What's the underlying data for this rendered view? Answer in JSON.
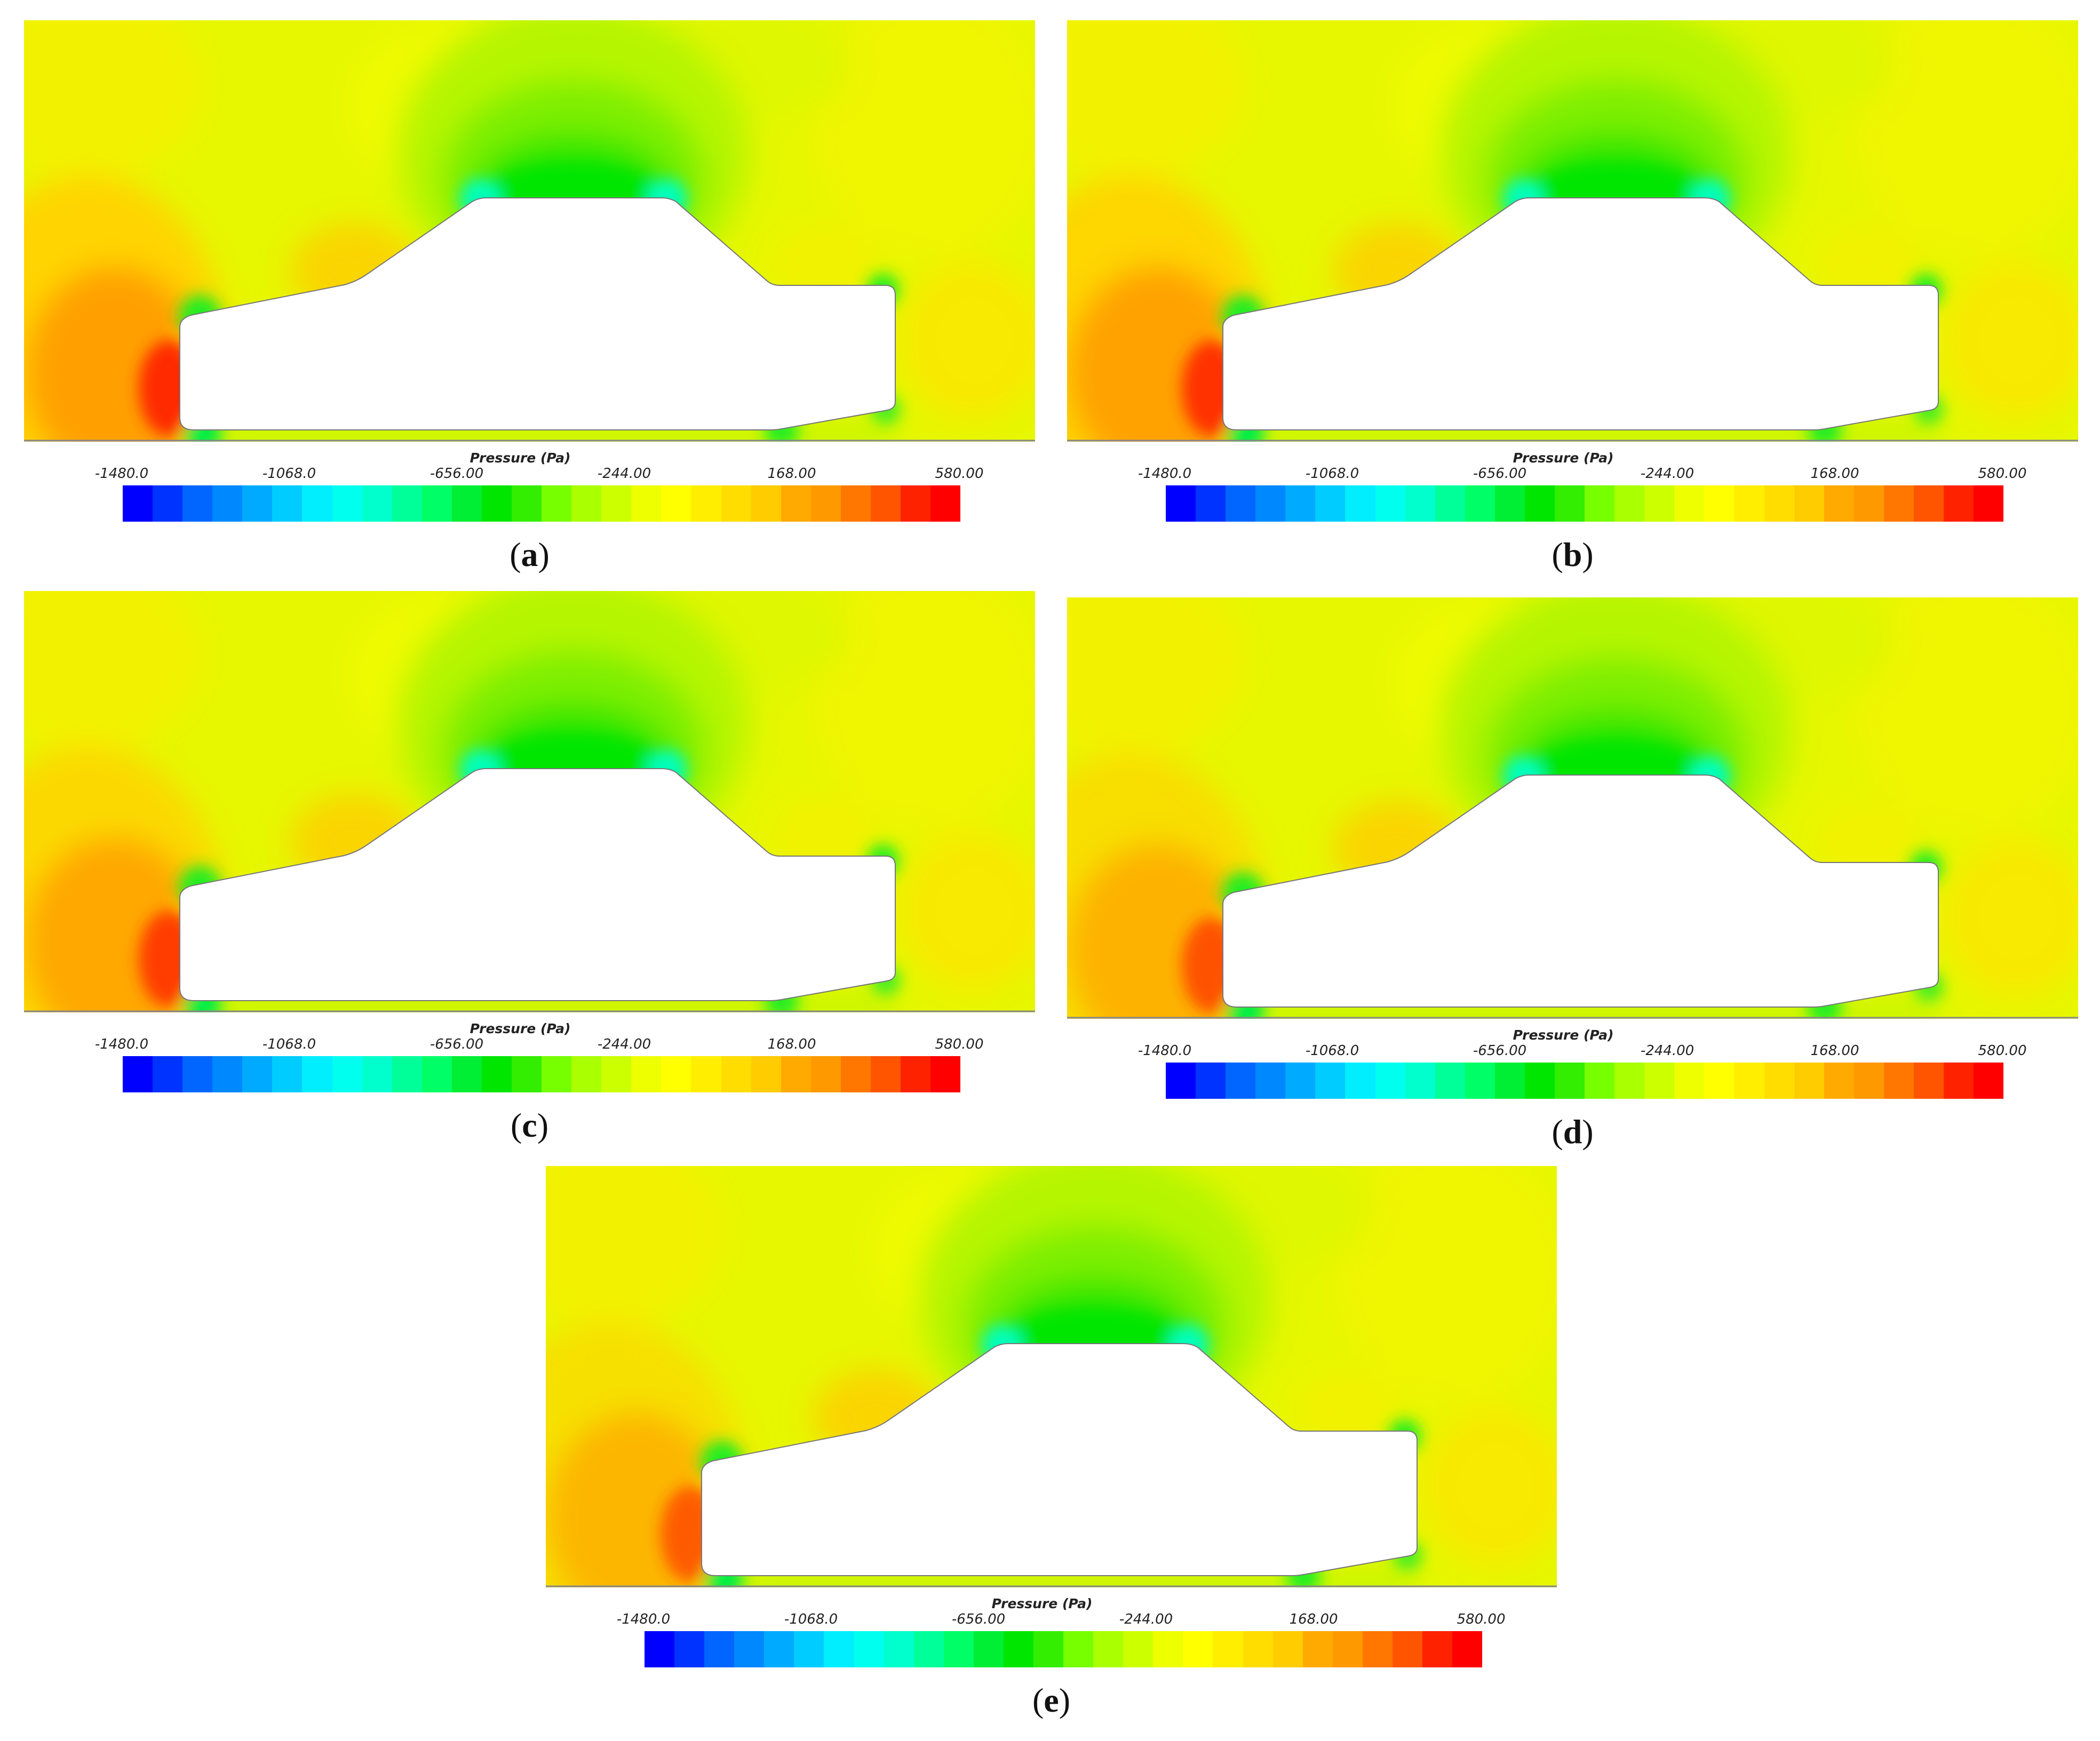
{
  "legend": {
    "title": "Pressure (Pa)",
    "ticks": [
      "-1480.0",
      "-1068.0",
      "-656.00",
      "-244.00",
      "168.00",
      "580.00"
    ],
    "min": -1480,
    "max": 580,
    "colors": [
      "#0000ff",
      "#0033ff",
      "#0066ff",
      "#0088ff",
      "#00aaff",
      "#00ccff",
      "#00eeff",
      "#00ffee",
      "#00ffcc",
      "#00ff99",
      "#00ff66",
      "#00ee33",
      "#00e600",
      "#33ee00",
      "#77ff00",
      "#aaff00",
      "#ccff00",
      "#eeff00",
      "#ffff00",
      "#ffee00",
      "#ffdd00",
      "#ffcc00",
      "#ffaa00",
      "#ff9900",
      "#ff7700",
      "#ff5500",
      "#ff2200",
      "#ff0000"
    ]
  },
  "panels": [
    {
      "id": "a",
      "caption_open": "(",
      "caption_label": "a",
      "caption_close": ")"
    },
    {
      "id": "b",
      "caption_open": "(",
      "caption_label": "b",
      "caption_close": ")"
    },
    {
      "id": "c",
      "caption_open": "(",
      "caption_label": "c",
      "caption_close": ")"
    },
    {
      "id": "d",
      "caption_open": "(",
      "caption_label": "d",
      "caption_close": ")"
    },
    {
      "id": "e",
      "caption_open": "(",
      "caption_label": "e",
      "caption_close": ")"
    }
  ]
}
